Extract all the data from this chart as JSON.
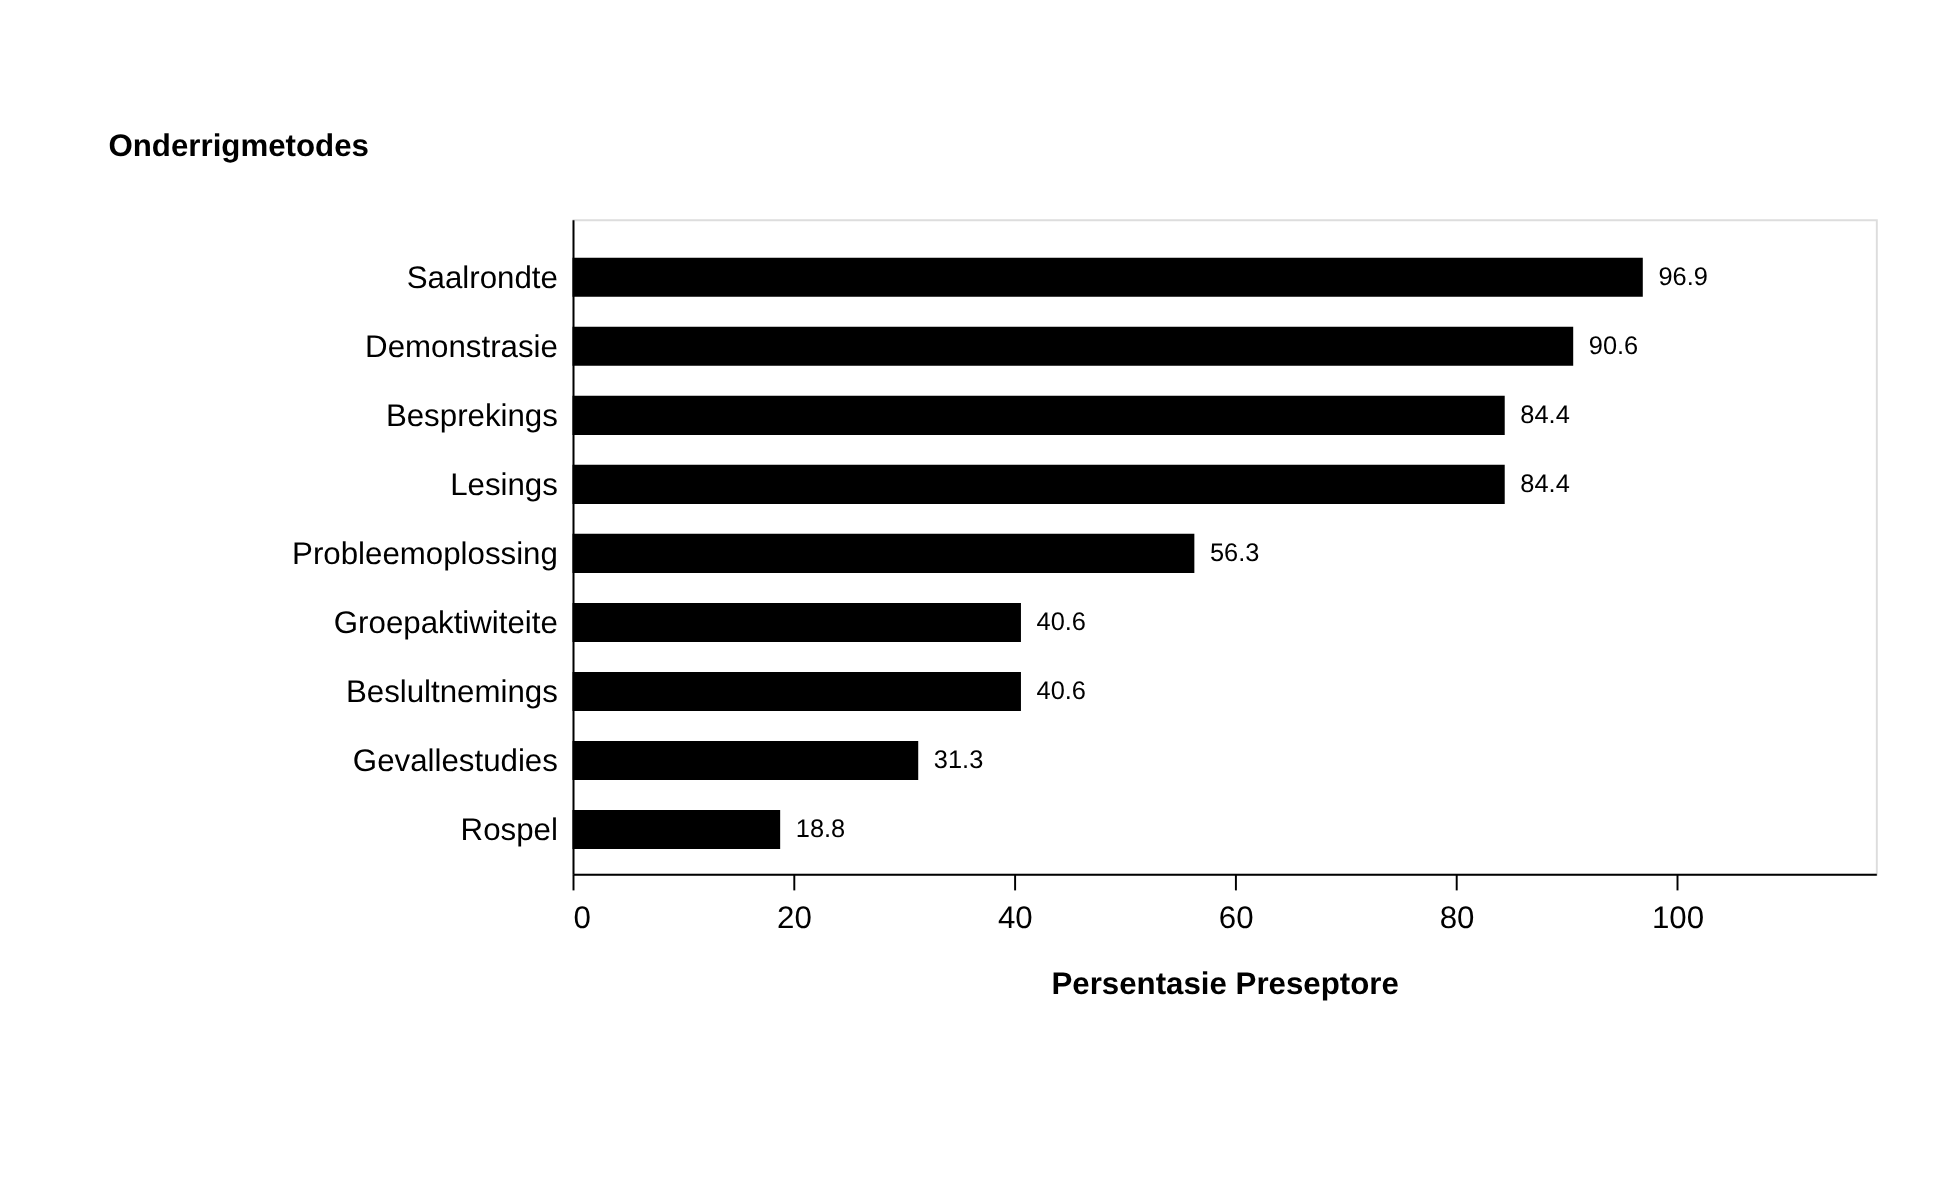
{
  "chart_data": {
    "type": "bar",
    "orientation": "horizontal",
    "ylabel": "Onderrigmetodes",
    "xlabel": "Persentasie Preseptore",
    "categories": [
      "Saalrondte",
      "Demonstrasie",
      "Besprekings",
      "Lesings",
      "Probleemoplossing",
      "Groepaktiwiteite",
      "Beslultnemings",
      "Gevallestudies",
      "Rospel"
    ],
    "values": [
      96.9,
      90.6,
      84.4,
      84.4,
      56.3,
      40.6,
      40.6,
      31.3,
      18.8
    ],
    "color": "#000000",
    "xlim": [
      0,
      118
    ],
    "xticks": [
      0,
      20,
      40,
      60,
      80,
      100
    ],
    "data_labels": true,
    "grid": false
  }
}
